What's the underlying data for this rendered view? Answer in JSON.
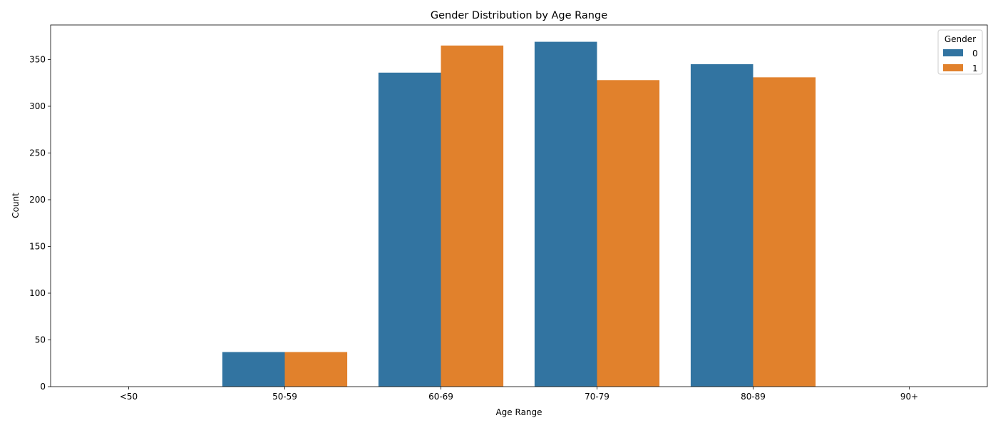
{
  "chart_data": {
    "type": "bar",
    "title": "Gender Distribution by Age Range",
    "xlabel": "Age Range",
    "ylabel": "Count",
    "categories": [
      "<50",
      "50-59",
      "60-69",
      "70-79",
      "80-89",
      "90+"
    ],
    "series": [
      {
        "name": "0",
        "color": "#3274a1",
        "values": [
          0,
          37,
          336,
          369,
          345,
          0
        ]
      },
      {
        "name": "1",
        "color": "#e1812c",
        "values": [
          0,
          37,
          365,
          328,
          331,
          0
        ]
      }
    ],
    "ylim": [
      0,
      387
    ],
    "yticks": [
      0,
      50,
      100,
      150,
      200,
      250,
      300,
      350
    ],
    "legend": {
      "title": "Gender",
      "position": "top-right"
    },
    "grid": false
  }
}
